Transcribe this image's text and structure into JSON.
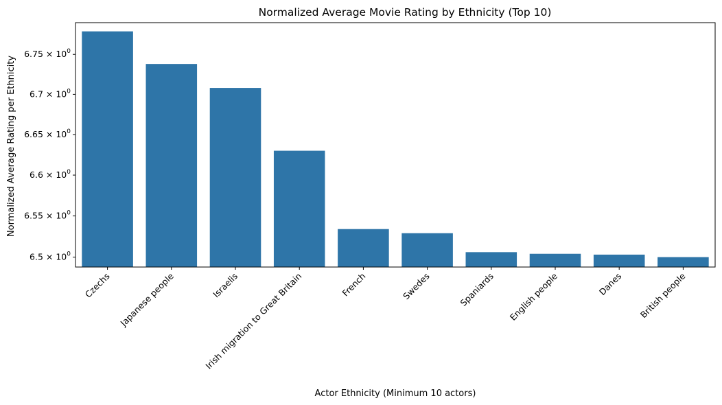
{
  "chart_data": {
    "type": "bar",
    "title": "Normalized Average Movie Rating by Ethnicity (Top 10)",
    "xlabel": "Actor Ethnicity (Minimum 10 actors)",
    "ylabel": "Normalized Average Rating per Ethnicity",
    "y_scale": "log",
    "ylim": [
      6.488,
      6.79
    ],
    "grid": false,
    "bar_color": "#2e75a8",
    "categories": [
      "Czechs",
      "Japanese people",
      "Israelis",
      "Irish migration to Great Britain",
      "French",
      "Swedes",
      "Spaniards",
      "English people",
      "Danes",
      "British people"
    ],
    "values": [
      6.779,
      6.738,
      6.708,
      6.63,
      6.534,
      6.529,
      6.506,
      6.504,
      6.503,
      6.5
    ],
    "y_ticks": [
      {
        "value": 6.5,
        "mantissa": "6.5",
        "base": "10",
        "exp": "0"
      },
      {
        "value": 6.55,
        "mantissa": "6.55",
        "base": "10",
        "exp": "0"
      },
      {
        "value": 6.6,
        "mantissa": "6.6",
        "base": "10",
        "exp": "0"
      },
      {
        "value": 6.65,
        "mantissa": "6.65",
        "base": "10",
        "exp": "0"
      },
      {
        "value": 6.7,
        "mantissa": "6.7",
        "base": "10",
        "exp": "0"
      },
      {
        "value": 6.75,
        "mantissa": "6.75",
        "base": "10",
        "exp": "0"
      }
    ]
  }
}
